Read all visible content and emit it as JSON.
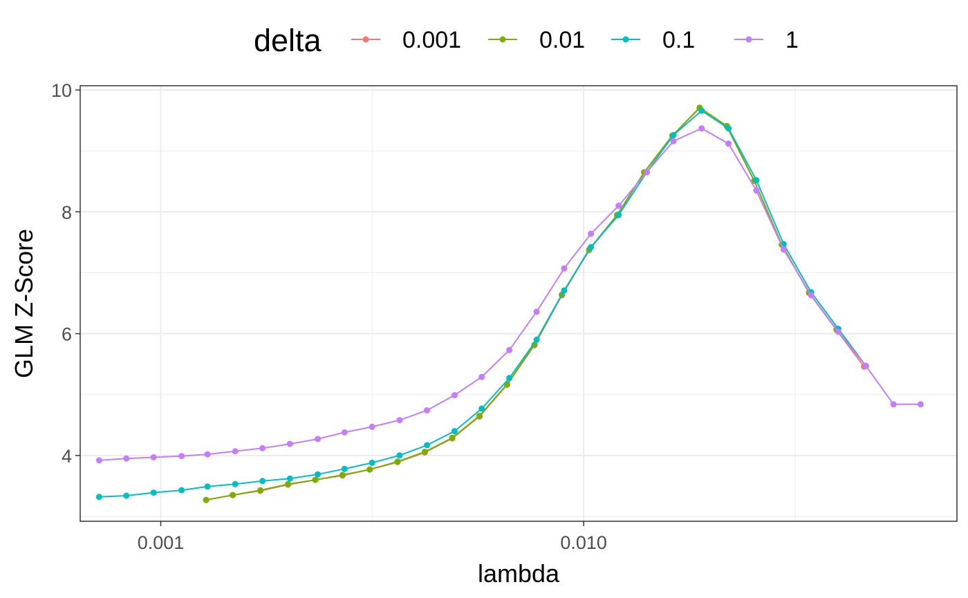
{
  "chart_data": {
    "type": "line",
    "xlabel": "lambda",
    "ylabel": "GLM Z-Score",
    "x_scale": "log10",
    "xlim": [
      0.000645,
      0.0763
    ],
    "ylim": [
      2.92,
      10.07
    ],
    "x_ticks": [
      0.001,
      0.01
    ],
    "x_tick_labels": [
      "0.001",
      "0.010"
    ],
    "y_ticks": [
      4,
      6,
      8,
      10
    ],
    "y_tick_labels": [
      "4",
      "6",
      "8",
      "10"
    ],
    "grid": true,
    "legend": {
      "title": "delta",
      "position": "top"
    },
    "series": [
      {
        "name": "0.001",
        "color": "#F8766D",
        "x": [
          0.00128,
          0.00148,
          0.00172,
          0.002,
          0.00232,
          0.00269,
          0.00312,
          0.00363,
          0.00421,
          0.00489,
          0.00567,
          0.00659,
          0.00765,
          0.00888,
          0.0103,
          0.012,
          0.0139,
          0.0162,
          0.0188,
          0.0218,
          0.0253,
          0.0294,
          0.0341,
          0.0396,
          0.046
        ],
        "y": [
          3.27,
          3.35,
          3.42,
          3.52,
          3.6,
          3.67,
          3.77,
          3.89,
          4.05,
          4.28,
          4.64,
          5.16,
          5.81,
          6.63,
          7.37,
          7.94,
          8.65,
          9.25,
          9.7,
          9.4,
          8.51,
          7.46,
          6.67,
          6.06,
          5.46
        ]
      },
      {
        "name": "0.01",
        "color": "#7CAE00",
        "x": [
          0.00128,
          0.00148,
          0.00172,
          0.002,
          0.00232,
          0.00269,
          0.00312,
          0.00363,
          0.00421,
          0.00489,
          0.00567,
          0.00659,
          0.00765,
          0.00888,
          0.0103,
          0.012,
          0.0139,
          0.0162,
          0.0188,
          0.0218,
          0.0253,
          0.0294,
          0.0341,
          0.0396
        ],
        "y": [
          3.27,
          3.35,
          3.43,
          3.53,
          3.6,
          3.68,
          3.77,
          3.9,
          4.06,
          4.29,
          4.65,
          5.17,
          5.82,
          6.64,
          7.38,
          7.95,
          8.65,
          9.25,
          9.71,
          9.41,
          8.51,
          7.46,
          6.67,
          6.07
        ]
      },
      {
        "name": "0.1",
        "color": "#00BFC4",
        "x": [
          0.000715,
          0.000829,
          0.000962,
          0.00112,
          0.00129,
          0.0015,
          0.00174,
          0.00202,
          0.00235,
          0.00272,
          0.00316,
          0.00367,
          0.00426,
          0.00495,
          0.00574,
          0.00667,
          0.00774,
          0.00899,
          0.0104,
          0.0121,
          0.0141,
          0.0163,
          0.019,
          0.022,
          0.0256,
          0.0297,
          0.0345,
          0.04,
          0.0465
        ],
        "y": [
          3.32,
          3.34,
          3.39,
          3.43,
          3.49,
          3.53,
          3.58,
          3.62,
          3.69,
          3.78,
          3.88,
          4.0,
          4.17,
          4.4,
          4.77,
          5.27,
          5.9,
          6.71,
          7.42,
          7.95,
          8.65,
          9.26,
          9.66,
          9.37,
          8.52,
          7.47,
          6.68,
          6.08,
          5.47
        ]
      },
      {
        "name": "1",
        "color": "#C77CFF",
        "x": [
          0.000715,
          0.000829,
          0.000962,
          0.00112,
          0.00129,
          0.0015,
          0.00174,
          0.00202,
          0.00235,
          0.00272,
          0.00316,
          0.00367,
          0.00426,
          0.00495,
          0.00574,
          0.00667,
          0.00774,
          0.00899,
          0.0104,
          0.0121,
          0.0141,
          0.0163,
          0.019,
          0.022,
          0.0256,
          0.0297,
          0.0345,
          0.04,
          0.0465,
          0.054,
          0.0626
        ],
        "y": [
          3.92,
          3.95,
          3.97,
          3.99,
          4.02,
          4.07,
          4.12,
          4.19,
          4.27,
          4.38,
          4.47,
          4.58,
          4.74,
          4.99,
          5.29,
          5.73,
          6.36,
          7.07,
          7.64,
          8.1,
          8.65,
          9.16,
          9.37,
          9.12,
          8.35,
          7.38,
          6.63,
          6.03,
          5.47,
          4.84,
          4.84
        ]
      }
    ]
  }
}
